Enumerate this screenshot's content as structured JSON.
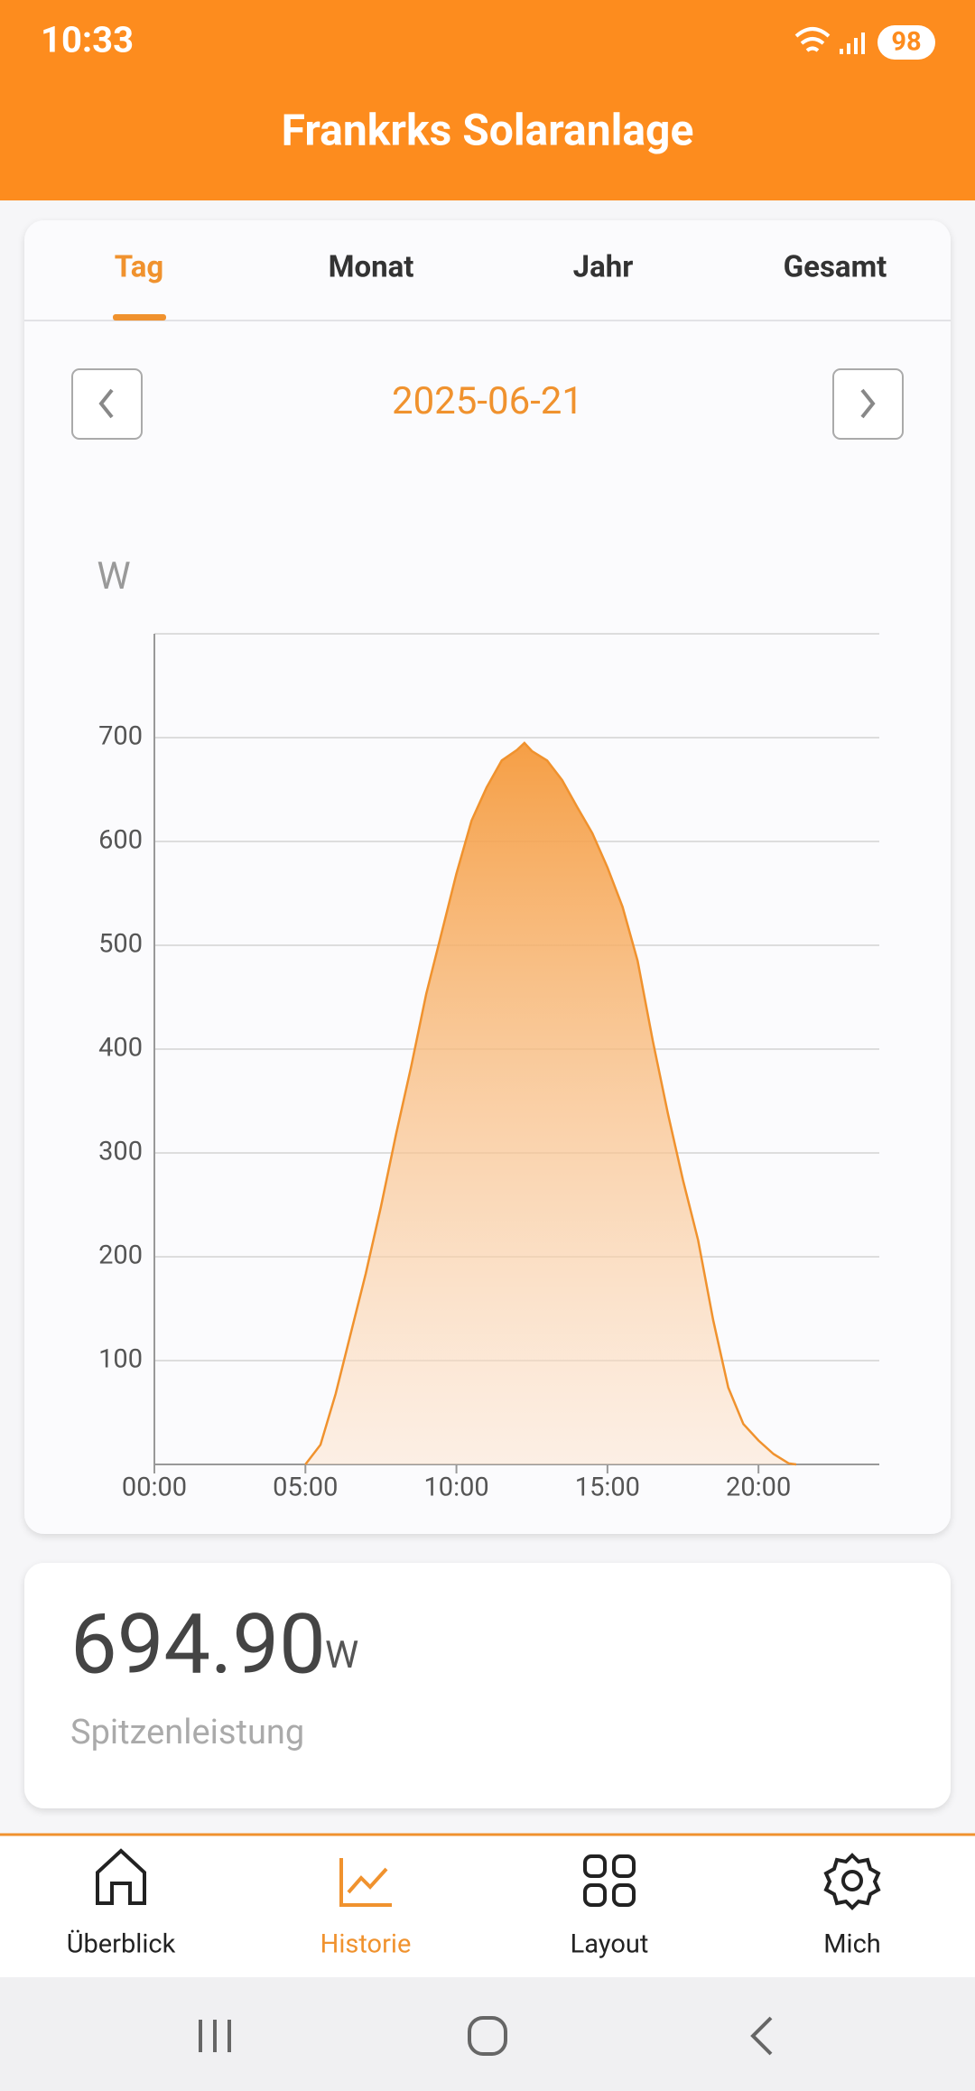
{
  "status_bar": {
    "time": "10:33",
    "battery": "98"
  },
  "header": {
    "title": "Frankrks Solaranlage"
  },
  "tabs": [
    "Tag",
    "Monat",
    "Jahr",
    "Gesamt"
  ],
  "date": "2025-06-21",
  "chart_data": {
    "type": "area",
    "y_label": "W",
    "x": [
      5,
      5.5,
      6,
      6.5,
      7,
      7.5,
      8,
      8.5,
      9,
      9.5,
      10,
      10.5,
      11,
      11.5,
      12,
      12.25,
      12.5,
      13,
      13.5,
      14,
      14.5,
      15,
      15.5,
      16,
      16.5,
      17,
      17.5,
      18,
      18.5,
      19,
      19.5,
      20,
      20.5,
      21,
      21.25
    ],
    "values": [
      0,
      19,
      68,
      126,
      184,
      248,
      318,
      383,
      453,
      511,
      569,
      620,
      652,
      678,
      688,
      694.9,
      687,
      678,
      659,
      633,
      608,
      575,
      537,
      485,
      408,
      338,
      274,
      216,
      139,
      74,
      39,
      23,
      10,
      1,
      0
    ],
    "color": "#f0922e",
    "xlim": [
      0,
      24
    ],
    "ylim": [
      0,
      800
    ],
    "xticks": [
      {
        "value": 0,
        "label": "00:00"
      },
      {
        "value": 5,
        "label": "05:00"
      },
      {
        "value": 10,
        "label": "10:00"
      },
      {
        "value": 15,
        "label": "15:00"
      },
      {
        "value": 20,
        "label": "20:00"
      }
    ],
    "yticks": [
      100,
      200,
      300,
      400,
      500,
      600,
      700
    ],
    "grid": true
  },
  "summary": {
    "value": "694.90",
    "unit": "W",
    "label": "Spitzenleistung"
  },
  "nav": [
    "Überblick",
    "Historie",
    "Layout",
    "Mich"
  ]
}
